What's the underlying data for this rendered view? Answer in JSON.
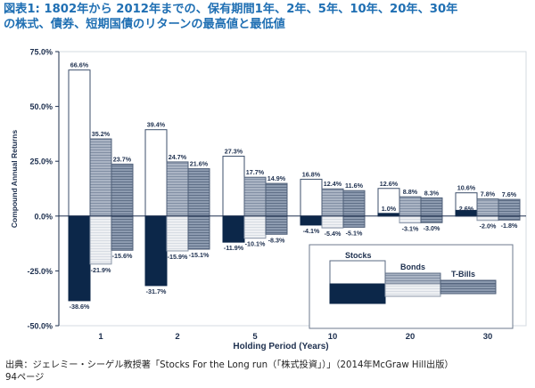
{
  "title_line1": "図表1: 1802年から 2012年までの、保有期間1年、2年、5年、10年、20年、30年",
  "title_line2": "の株式、債券、短期国債のリターンの最高値と最低値",
  "source_line1": "出典：ジェレミー・シーゲル教授著「Stocks For the Long run（「株式投資」）」（2014年McGraw Hill出版）",
  "source_line2": "94ページ",
  "colors": {
    "title": "#1f6fb3",
    "axis_text": "#1d2f4e",
    "stocks_max_fill": "#ffffff",
    "stocks_min_fill": "#0c2749",
    "bonds_max_fill": "#aab4c4",
    "bonds_min_fill": "#eef0f3",
    "tbills_fill": "#8d9bb0",
    "frame": "#6c7a8e"
  },
  "chart_data": {
    "type": "bar",
    "title": "",
    "xlabel": "Holding Period (Years)",
    "ylabel": "Compound Annual Returns",
    "ylim": [
      -50,
      75
    ],
    "yticks": [
      -50,
      -25,
      0,
      25,
      50,
      75
    ],
    "ytick_labels": [
      "-50.0%",
      "-25.0%",
      "0.0%",
      "25.0%",
      "50.0%",
      "75.0%"
    ],
    "categories": [
      "1",
      "2",
      "5",
      "10",
      "20",
      "30"
    ],
    "series": [
      {
        "name": "Stocks",
        "max": [
          66.6,
          39.4,
          27.3,
          16.8,
          12.6,
          10.6
        ],
        "min": [
          -38.6,
          -31.7,
          -11.9,
          -4.1,
          1.0,
          2.6
        ],
        "max_labels": [
          "66.6%",
          "39.4%",
          "27.3%",
          "16.8%",
          "12.6%",
          "10.6%"
        ],
        "min_labels": [
          "-38.6%",
          "-31.7%",
          "-11.9%",
          "-4.1%",
          "1.0%",
          "2.6%"
        ]
      },
      {
        "name": "Bonds",
        "max": [
          35.2,
          24.7,
          17.7,
          12.4,
          8.8,
          7.8
        ],
        "min": [
          -21.9,
          -15.9,
          -10.1,
          -5.4,
          -3.1,
          -2.0
        ],
        "max_labels": [
          "35.2%",
          "24.7%",
          "17.7%",
          "12.4%",
          "8.8%",
          "7.8%"
        ],
        "min_labels": [
          "-21.9%",
          "-15.9%",
          "-10.1%",
          "-5.4%",
          "-3.1%",
          "-2.0%"
        ]
      },
      {
        "name": "T-Bills",
        "max": [
          23.7,
          21.6,
          14.9,
          11.6,
          8.3,
          7.6
        ],
        "min": [
          -15.6,
          -15.1,
          -8.3,
          -5.1,
          -3.0,
          -1.8
        ],
        "max_labels": [
          "23.7%",
          "21.6%",
          "14.9%",
          "11.6%",
          "8.3%",
          "7.6%"
        ],
        "min_labels": [
          "-15.6%",
          "-15.1%",
          "-8.3%",
          "-5.1%",
          "-3.0%",
          "-1.8%"
        ]
      }
    ],
    "legend": {
      "placement": "bottom-right",
      "labels": [
        "Stocks",
        "Bonds",
        "T-Bills"
      ]
    }
  }
}
